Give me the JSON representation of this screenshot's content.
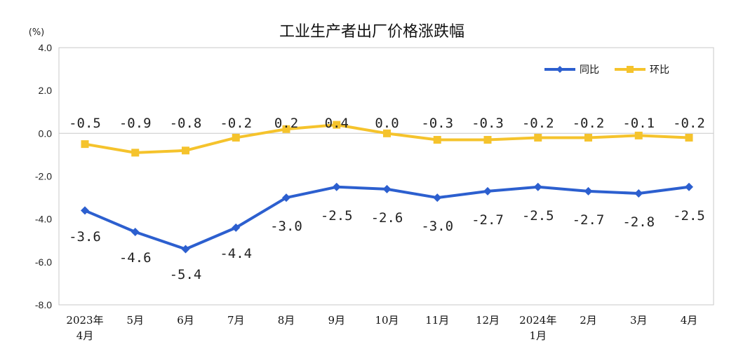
{
  "chart_data": {
    "type": "line",
    "title": "工业生产者出厂价格涨跌幅",
    "unit": "(%)",
    "categories": [
      [
        "2023年",
        "4月"
      ],
      [
        "5月"
      ],
      [
        "6月"
      ],
      [
        "7月"
      ],
      [
        "8月"
      ],
      [
        "9月"
      ],
      [
        "10月"
      ],
      [
        "11月"
      ],
      [
        "12月"
      ],
      [
        "2024年",
        "1月"
      ],
      [
        "2月"
      ],
      [
        "3月"
      ],
      [
        "4月"
      ]
    ],
    "y_ticks": [
      "4.0",
      "2.0",
      "0.0",
      "-2.0",
      "-4.0",
      "-6.0",
      "-8.0"
    ],
    "ylim": [
      -8,
      4
    ],
    "legend_position": "top-right",
    "series": [
      {
        "name": "同比",
        "color": "#2c5fcf",
        "marker": "diamond",
        "values": [
          -3.6,
          -4.6,
          -5.4,
          -4.4,
          -3.0,
          -2.5,
          -2.6,
          -3.0,
          -2.7,
          -2.5,
          -2.7,
          -2.8,
          -2.5
        ],
        "labels": [
          "-3.6",
          "-4.6",
          "-5.4",
          "-4.4",
          "-3.0",
          "-2.5",
          "-2.6",
          "-3.0",
          "-2.7",
          "-2.5",
          "-2.7",
          "-2.8",
          "-2.5"
        ]
      },
      {
        "name": "环比",
        "color": "#f5c32c",
        "marker": "square",
        "values": [
          -0.5,
          -0.9,
          -0.8,
          -0.2,
          0.2,
          0.4,
          0.0,
          -0.3,
          -0.3,
          -0.2,
          -0.2,
          -0.1,
          -0.2
        ],
        "labels": [
          "-0.5",
          "-0.9",
          "-0.8",
          "-0.2",
          "0.2",
          "0.4",
          "0.0",
          "-0.3",
          "-0.3",
          "-0.2",
          "-0.2",
          "-0.1",
          "-0.2"
        ]
      }
    ]
  }
}
